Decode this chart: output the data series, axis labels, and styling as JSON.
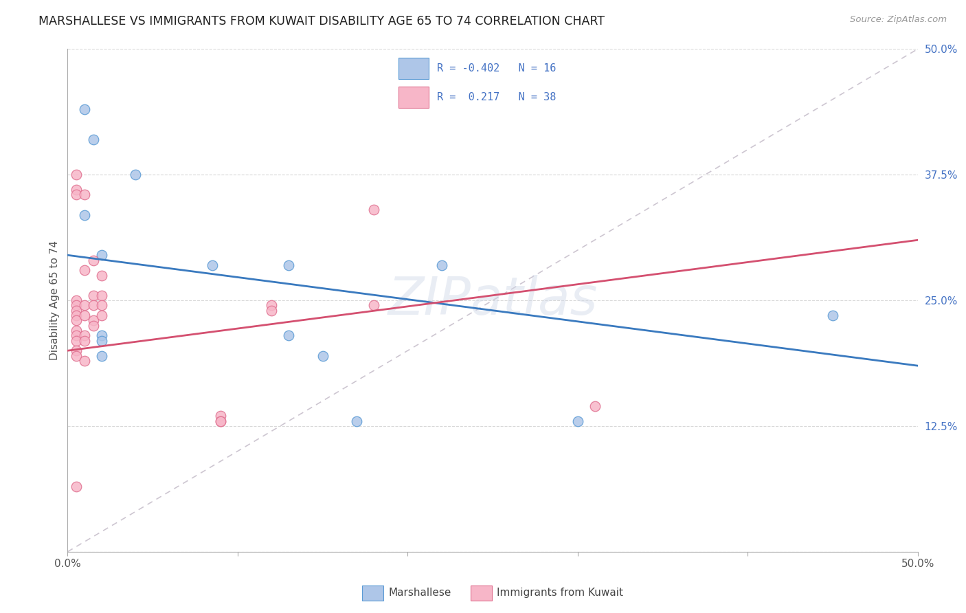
{
  "title": "MARSHALLESE VS IMMIGRANTS FROM KUWAIT DISABILITY AGE 65 TO 74 CORRELATION CHART",
  "source": "Source: ZipAtlas.com",
  "ylabel": "Disability Age 65 to 74",
  "legend_label_blue": "Marshallese",
  "legend_label_pink": "Immigrants from Kuwait",
  "r_blue": "-0.402",
  "n_blue": "16",
  "r_pink": "0.217",
  "n_pink": "38",
  "xlim": [
    0.0,
    0.5
  ],
  "ylim": [
    0.0,
    0.5
  ],
  "yticks": [
    0.0,
    0.125,
    0.25,
    0.375,
    0.5
  ],
  "ytick_labels": [
    "",
    "12.5%",
    "25.0%",
    "37.5%",
    "50.0%"
  ],
  "blue_scatter_x": [
    0.01,
    0.015,
    0.04,
    0.01,
    0.02,
    0.085,
    0.13,
    0.13,
    0.22,
    0.02,
    0.02,
    0.02,
    0.15,
    0.17,
    0.45,
    0.3
  ],
  "blue_scatter_y": [
    0.44,
    0.41,
    0.375,
    0.335,
    0.295,
    0.285,
    0.285,
    0.215,
    0.285,
    0.215,
    0.21,
    0.195,
    0.195,
    0.13,
    0.235,
    0.13
  ],
  "pink_scatter_x": [
    0.005,
    0.005,
    0.005,
    0.005,
    0.005,
    0.005,
    0.005,
    0.005,
    0.005,
    0.005,
    0.005,
    0.005,
    0.005,
    0.01,
    0.01,
    0.01,
    0.01,
    0.01,
    0.01,
    0.01,
    0.015,
    0.015,
    0.015,
    0.015,
    0.015,
    0.02,
    0.02,
    0.02,
    0.02,
    0.09,
    0.09,
    0.09,
    0.12,
    0.12,
    0.18,
    0.18,
    0.31,
    0.005
  ],
  "pink_scatter_y": [
    0.375,
    0.36,
    0.355,
    0.25,
    0.245,
    0.24,
    0.235,
    0.23,
    0.22,
    0.215,
    0.21,
    0.2,
    0.195,
    0.355,
    0.28,
    0.245,
    0.235,
    0.215,
    0.21,
    0.19,
    0.29,
    0.255,
    0.245,
    0.23,
    0.225,
    0.275,
    0.255,
    0.245,
    0.235,
    0.135,
    0.13,
    0.13,
    0.245,
    0.24,
    0.34,
    0.245,
    0.145,
    0.065
  ],
  "blue_line_x": [
    0.0,
    0.5
  ],
  "blue_line_y": [
    0.295,
    0.185
  ],
  "pink_line_x": [
    0.0,
    0.5
  ],
  "pink_line_y": [
    0.2,
    0.31
  ],
  "dashed_line_x": [
    0.0,
    0.5
  ],
  "dashed_line_y": [
    0.0,
    0.5
  ],
  "watermark": "ZIPatlas",
  "color_blue_fill": "#aec6e8",
  "color_blue_edge": "#5b9bd5",
  "color_blue_line": "#3a7abf",
  "color_pink_fill": "#f7b6c8",
  "color_pink_edge": "#e07090",
  "color_pink_line": "#d45070",
  "color_dashed": "#c8c0cc",
  "background_color": "#ffffff",
  "grid_color": "#d8d8d8",
  "text_color_blue": "#4472c4",
  "tick_label_color": "#555555"
}
